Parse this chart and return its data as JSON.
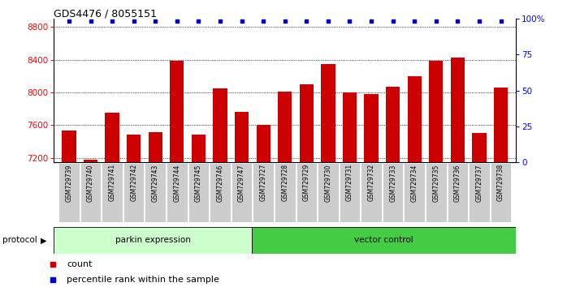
{
  "title": "GDS4476 / 8055151",
  "samples": [
    "GSM729739",
    "GSM729740",
    "GSM729741",
    "GSM729742",
    "GSM729743",
    "GSM729744",
    "GSM729745",
    "GSM729746",
    "GSM729747",
    "GSM729727",
    "GSM729728",
    "GSM729729",
    "GSM729730",
    "GSM729731",
    "GSM729732",
    "GSM729733",
    "GSM729734",
    "GSM729735",
    "GSM729736",
    "GSM729737",
    "GSM729738"
  ],
  "counts": [
    7540,
    7175,
    7750,
    7490,
    7520,
    8390,
    7490,
    8050,
    7760,
    7600,
    8010,
    8100,
    8350,
    8000,
    7985,
    8070,
    8200,
    8390,
    8430,
    7510,
    8060
  ],
  "percentile": [
    100,
    100,
    100,
    100,
    100,
    100,
    100,
    100,
    100,
    100,
    100,
    100,
    100,
    100,
    100,
    100,
    100,
    100,
    100,
    100,
    100
  ],
  "group1_label": "parkin expression",
  "group2_label": "vector control",
  "group1_count": 9,
  "group2_count": 12,
  "bar_color": "#CC0000",
  "percentile_color": "#0000CC",
  "group1_bg": "#CCFFCC",
  "group2_bg": "#44CC44",
  "protocol_label": "protocol",
  "legend_count_label": "count",
  "legend_pct_label": "percentile rank within the sample",
  "ylim_left": [
    7150,
    8900
  ],
  "ylim_right": [
    0,
    100
  ],
  "yticks_left": [
    7200,
    7600,
    8000,
    8400,
    8800
  ],
  "yticks_right": [
    0,
    25,
    50,
    75,
    100
  ],
  "ytick_right_labels": [
    "0",
    "25",
    "50",
    "75",
    "100%"
  ]
}
